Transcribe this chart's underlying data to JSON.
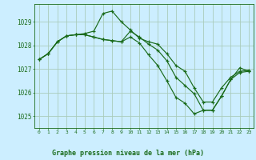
{
  "title": "Graphe pression niveau de la mer (hPa)",
  "background_color": "#cceeff",
  "grid_color": "#aaccbb",
  "line_color": "#1a6b1a",
  "xlim": [
    -0.5,
    23.5
  ],
  "ylim": [
    1024.5,
    1029.75
  ],
  "yticks": [
    1025,
    1026,
    1027,
    1028,
    1029
  ],
  "xticks": [
    0,
    1,
    2,
    3,
    4,
    5,
    6,
    7,
    8,
    9,
    10,
    11,
    12,
    13,
    14,
    15,
    16,
    17,
    18,
    19,
    20,
    21,
    22,
    23
  ],
  "series": [
    [
      1027.4,
      1027.65,
      1028.15,
      1028.4,
      1028.45,
      1028.5,
      1028.6,
      1029.35,
      1029.45,
      1029.0,
      1028.65,
      1028.3,
      1028.15,
      1028.05,
      1027.65,
      1027.15,
      1026.9,
      1026.2,
      1025.6,
      1025.6,
      1026.2,
      1026.65,
      1026.9,
      1026.95
    ],
    [
      1027.4,
      1027.65,
      1028.15,
      1028.4,
      1028.45,
      1028.45,
      1028.35,
      1028.25,
      1028.2,
      1028.15,
      1028.6,
      1028.35,
      1028.05,
      1027.8,
      1027.35,
      1026.65,
      1026.3,
      1025.95,
      1025.25,
      1025.25,
      1025.85,
      1026.55,
      1026.85,
      1026.9
    ],
    [
      1027.4,
      1027.65,
      1028.15,
      1028.4,
      1028.45,
      1028.45,
      1028.35,
      1028.25,
      1028.2,
      1028.15,
      1028.35,
      1028.1,
      1027.6,
      1027.15,
      1026.5,
      1025.8,
      1025.55,
      1025.1,
      1025.25,
      1025.25,
      1025.85,
      1026.55,
      1027.05,
      1026.9
    ]
  ]
}
